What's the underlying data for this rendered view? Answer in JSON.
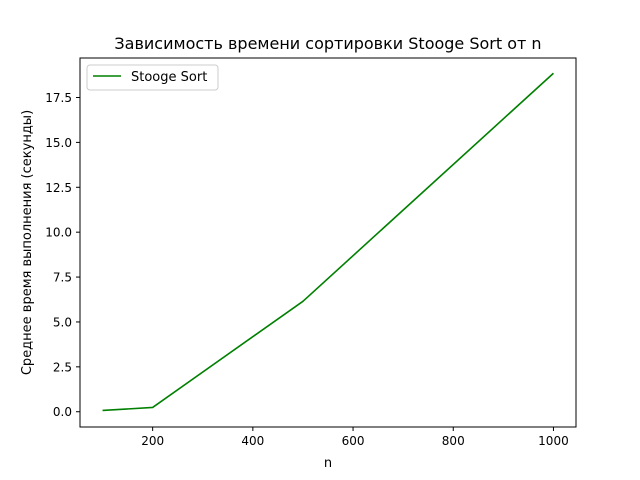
{
  "chart_data": {
    "type": "line",
    "title": "Зависимость времени сортировки Stooge Sort от n",
    "xlabel": "n",
    "ylabel": "Среднее время выполнения (секунды)",
    "xlim": [
      55,
      1045
    ],
    "ylim": [
      -0.85,
      19.7
    ],
    "xticks": [
      200,
      400,
      600,
      800,
      1000
    ],
    "xtick_labels": [
      "200",
      "400",
      "600",
      "800",
      "1000"
    ],
    "yticks": [
      0.0,
      2.5,
      5.0,
      7.5,
      10.0,
      12.5,
      15.0,
      17.5
    ],
    "ytick_labels": [
      "0.0",
      "2.5",
      "5.0",
      "7.5",
      "10.0",
      "12.5",
      "15.0",
      "17.5"
    ],
    "grid": false,
    "legend_position": "top-left",
    "series": [
      {
        "name": "Stooge Sort",
        "color": "#008000",
        "x": [
          100,
          200,
          500,
          1000
        ],
        "y": [
          0.07,
          0.24,
          6.15,
          18.85
        ]
      }
    ]
  }
}
